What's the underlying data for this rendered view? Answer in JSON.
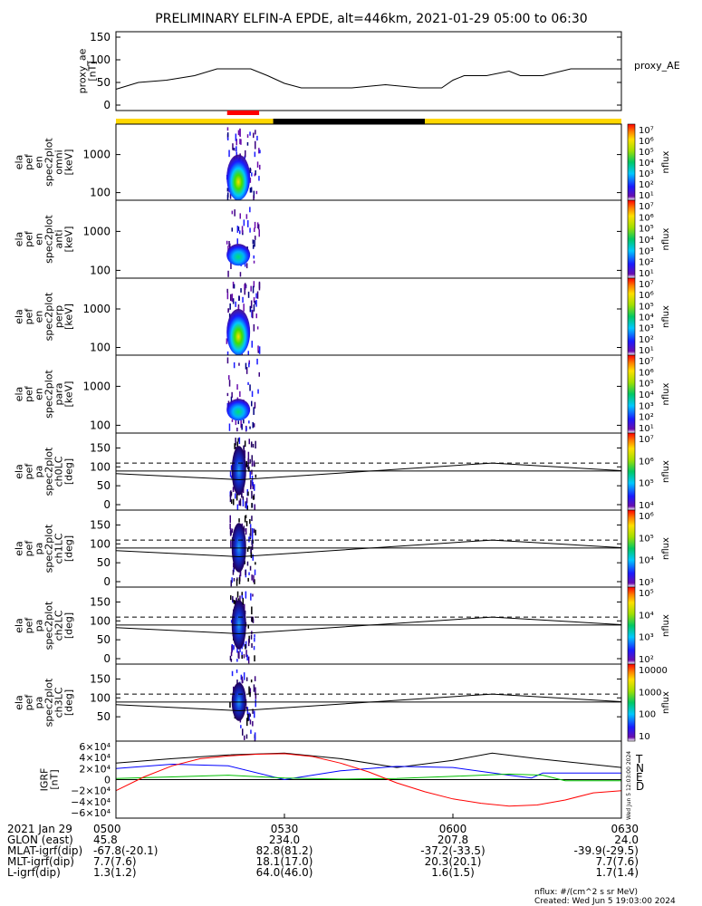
{
  "title": "PRELIMINARY ELFIN-A EPDE, alt=446km, 2021-01-29 05:00 to 06:30",
  "chart_data": [
    {
      "type": "line",
      "id": "proxy_ae",
      "ylabel": [
        "proxy_ae",
        "[nT]"
      ],
      "legend": "proxy_AE",
      "ylim": [
        0,
        150
      ],
      "yticks": [
        "150",
        "100",
        "50",
        "0"
      ],
      "x_minutes_from_0500": [
        0,
        4,
        9,
        14,
        18,
        20,
        24,
        27,
        30,
        33,
        36,
        42,
        48,
        54,
        58,
        60,
        62,
        66,
        70,
        72,
        76,
        81,
        86,
        90
      ],
      "values": [
        35,
        50,
        55,
        65,
        80,
        80,
        80,
        65,
        48,
        38,
        38,
        38,
        45,
        38,
        38,
        55,
        65,
        65,
        75,
        65,
        65,
        80,
        80,
        80
      ]
    },
    {
      "type": "timeline",
      "id": "science-zone-bar",
      "segments": [
        {
          "start_min": 0,
          "end_min": 28,
          "color": "#ffd700"
        },
        {
          "start_min": 28,
          "end_min": 55,
          "color": "#000000"
        },
        {
          "start_min": 55,
          "end_min": 90,
          "color": "#ffd700"
        }
      ],
      "marker": {
        "start_min": 19.8,
        "end_min": 25.5,
        "color": "#ff0000"
      }
    },
    {
      "type": "heatmap",
      "id": "spec-omni",
      "ylabel": [
        "ela",
        "pef",
        "en",
        "spec2plot",
        "omni",
        "[keV]"
      ],
      "yscale": "log",
      "yticks": [
        "1000",
        "100"
      ],
      "colorbar": {
        "label": "nflux",
        "ticks": [
          "10⁷",
          "10⁶",
          "10⁵",
          "10⁴",
          "10³",
          "10²",
          "10¹"
        ]
      },
      "activity": {
        "start_min": 20,
        "end_min": 26,
        "peak": "high"
      }
    },
    {
      "type": "heatmap",
      "id": "spec-anti",
      "ylabel": [
        "ela",
        "pef",
        "en",
        "spec2plot",
        "anti",
        "[keV]"
      ],
      "yscale": "log",
      "yticks": [
        "1000",
        "100"
      ],
      "colorbar": {
        "label": "nflux",
        "ticks": [
          "10⁷",
          "10⁶",
          "10⁵",
          "10⁴",
          "10³",
          "10²",
          "10¹"
        ]
      },
      "activity": {
        "start_min": 20,
        "end_min": 26,
        "peak": "low"
      }
    },
    {
      "type": "heatmap",
      "id": "spec-perp",
      "ylabel": [
        "ela",
        "pef",
        "en",
        "spec2plot",
        "perp",
        "[keV]"
      ],
      "yscale": "log",
      "yticks": [
        "1000",
        "100"
      ],
      "colorbar": {
        "label": "nflux",
        "ticks": [
          "10⁷",
          "10⁶",
          "10⁵",
          "10⁴",
          "10³",
          "10²",
          "10¹"
        ]
      },
      "activity": {
        "start_min": 20,
        "end_min": 26,
        "peak": "high"
      }
    },
    {
      "type": "heatmap",
      "id": "spec-para",
      "ylabel": [
        "ela",
        "pef",
        "en",
        "spec2plot",
        "para",
        "[keV]"
      ],
      "yscale": "log",
      "yticks": [
        "1000",
        "100"
      ],
      "colorbar": {
        "label": "nflux",
        "ticks": [
          "10⁷",
          "10⁶",
          "10⁵",
          "10⁴",
          "10³",
          "10²",
          "10¹"
        ]
      },
      "activity": {
        "start_min": 20,
        "end_min": 26,
        "peak": "low"
      }
    },
    {
      "type": "heatmap",
      "id": "pa-ch0",
      "ylabel": [
        "ela",
        "pef",
        "pa",
        "spec2plot",
        "ch0LC",
        "[deg]"
      ],
      "ylim": [
        0,
        180
      ],
      "yticks": [
        "150",
        "100",
        "50",
        "0"
      ],
      "colorbar": {
        "label": "nflux",
        "ticks": [
          "10⁷",
          "10⁶",
          "10⁵",
          "10⁴"
        ]
      },
      "lc_dashed": 110,
      "lc_line": {
        "x_minutes_from_0500": [
          0,
          21.5,
          90
        ],
        "values": [
          89,
          89,
          89
        ]
      },
      "bounce_line": {
        "x_minutes_from_0500": [
          0,
          22,
          67,
          90
        ],
        "values": [
          82,
          66,
          110,
          90
        ]
      }
    },
    {
      "type": "heatmap",
      "id": "pa-ch1",
      "ylabel": [
        "ela",
        "pef",
        "pa",
        "spec2plot",
        "ch1LC",
        "[deg]"
      ],
      "ylim": [
        0,
        180
      ],
      "yticks": [
        "150",
        "100",
        "50",
        "0"
      ],
      "colorbar": {
        "label": "nflux",
        "ticks": [
          "10⁶",
          "10⁵",
          "10⁴",
          "10³"
        ]
      },
      "lc_dashed": 110,
      "lc_line": {
        "x_minutes_from_0500": [
          0,
          90
        ],
        "values": [
          89,
          89
        ]
      },
      "bounce_line": {
        "x_minutes_from_0500": [
          0,
          22,
          67,
          90
        ],
        "values": [
          82,
          66,
          110,
          90
        ]
      }
    },
    {
      "type": "heatmap",
      "id": "pa-ch2",
      "ylabel": [
        "ela",
        "pef",
        "pa",
        "spec2plot",
        "ch2LC",
        "[deg]"
      ],
      "ylim": [
        0,
        180
      ],
      "yticks": [
        "150",
        "100",
        "50",
        "0"
      ],
      "colorbar": {
        "label": "nflux",
        "ticks": [
          "10⁵",
          "10⁴",
          "10³",
          "10²"
        ]
      },
      "lc_dashed": 110,
      "lc_line": {
        "x_minutes_from_0500": [
          0,
          90
        ],
        "values": [
          89,
          89
        ]
      },
      "bounce_line": {
        "x_minutes_from_0500": [
          0,
          22,
          67,
          90
        ],
        "values": [
          82,
          66,
          110,
          90
        ]
      }
    },
    {
      "type": "heatmap",
      "id": "pa-ch3",
      "ylabel": [
        "ela",
        "pef",
        "pa",
        "spec2plot",
        "ch3LC",
        "[deg]"
      ],
      "ylim": [
        0,
        180
      ],
      "yticks": [
        "150",
        "100",
        "50"
      ],
      "colorbar": {
        "label": "nflux",
        "ticks": [
          "10000",
          "1000",
          "100",
          "10"
        ]
      },
      "lc_dashed": 110,
      "lc_line": {
        "x_minutes_from_0500": [
          0,
          90
        ],
        "values": [
          89,
          89
        ]
      },
      "bounce_line": {
        "x_minutes_from_0500": [
          0,
          22,
          67,
          90
        ],
        "values": [
          82,
          66,
          110,
          90
        ]
      }
    },
    {
      "type": "line",
      "id": "igrf",
      "ylabel": [
        "IGRF",
        "[nT]"
      ],
      "ylim": [
        -65000,
        65000
      ],
      "yticks": [
        "6×10⁴",
        "4×10⁴",
        "2×10⁴",
        "0",
        "−2×10⁴",
        "−4×10⁴",
        "−6×10⁴"
      ],
      "series": [
        {
          "name": "T",
          "color": "#000000",
          "x": [
            0,
            10,
            20,
            30,
            40,
            50,
            60,
            67,
            75,
            90
          ],
          "values": [
            30000,
            38000,
            45000,
            48000,
            38000,
            22000,
            35000,
            48000,
            38000,
            22000
          ]
        },
        {
          "name": "N",
          "color": "#0000ff",
          "x": [
            0,
            10,
            20,
            30,
            40,
            50,
            60,
            70,
            74,
            76,
            90
          ],
          "values": [
            20000,
            28000,
            25000,
            0,
            16000,
            24000,
            22000,
            8000,
            3000,
            12000,
            12000
          ]
        },
        {
          "name": "E",
          "color": "#00c000",
          "x": [
            0,
            10,
            20,
            30,
            40,
            50,
            60,
            70,
            76,
            80,
            90
          ],
          "values": [
            2000,
            5000,
            8000,
            3000,
            1000,
            2000,
            6000,
            10000,
            8000,
            -2000,
            -2000
          ]
        },
        {
          "name": "D",
          "color": "#ff0000",
          "x": [
            0,
            5,
            10,
            15,
            20,
            25,
            30,
            35,
            40,
            45,
            50,
            55,
            60,
            65,
            70,
            75,
            80,
            85,
            90
          ],
          "values": [
            -20000,
            5000,
            25000,
            38000,
            43000,
            46000,
            47000,
            42000,
            30000,
            14000,
            -6000,
            -22000,
            -35000,
            -43000,
            -48000,
            -46000,
            -37000,
            -24000,
            -20000
          ]
        }
      ]
    }
  ],
  "xaxis": {
    "rows": [
      {
        "label": "2021 Jan 29",
        "values": [
          "0500",
          "0530",
          "0600",
          "0630"
        ]
      },
      {
        "label": "GLON (east)",
        "values": [
          "45.8",
          "234.0",
          "207.8",
          "24.0"
        ]
      },
      {
        "label": "MLAT-igrf(dip)",
        "values": [
          "-67.8(-20.1)",
          "82.8(81.2)",
          "-37.2(-33.5)",
          "-39.9(-29.5)"
        ]
      },
      {
        "label": "MLT-igrf(dip)",
        "values": [
          "7.7(7.6)",
          "18.1(17.0)",
          "20.3(20.1)",
          "7.7(7.6)"
        ]
      },
      {
        "label": "L-igrf(dip)",
        "values": [
          "1.3(1.2)",
          "64.0(46.0)",
          "1.6(1.5)",
          "1.7(1.4)"
        ]
      }
    ]
  },
  "footer": {
    "units": "nflux: #/(cm^2 s sr MeV)",
    "created": "Created: Wed Jun  5 19:03:00 2024",
    "side_stamp": "Wed Jun  5 12:03:00 2024"
  }
}
